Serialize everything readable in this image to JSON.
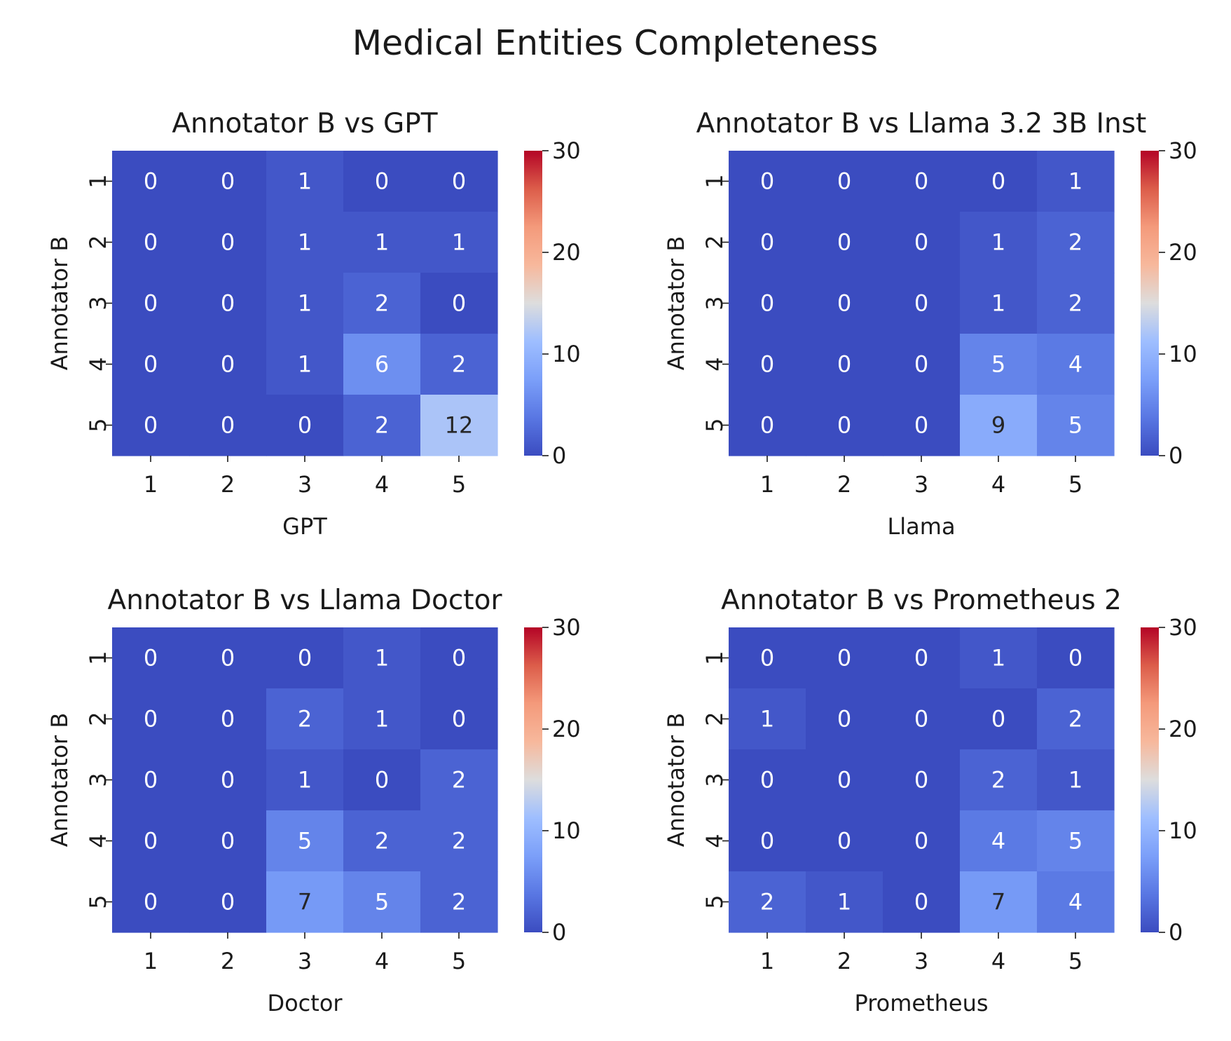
{
  "figure_title": "Medical Entities Completeness",
  "chart_data": [
    {
      "type": "heatmap",
      "title": "Annotator B vs GPT",
      "xlabel": "GPT",
      "ylabel": "Annotator B",
      "x_categories": [
        "1",
        "2",
        "3",
        "4",
        "5"
      ],
      "y_categories": [
        "1",
        "2",
        "3",
        "4",
        "5"
      ],
      "values": [
        [
          0,
          0,
          1,
          0,
          0
        ],
        [
          0,
          0,
          1,
          1,
          1
        ],
        [
          0,
          0,
          1,
          2,
          0
        ],
        [
          0,
          0,
          1,
          6,
          2
        ],
        [
          0,
          0,
          0,
          2,
          12
        ]
      ],
      "colorbar": {
        "colormap": "coolwarm",
        "vmin": 0,
        "vmax": 30,
        "ticks": [
          "0",
          "10",
          "20",
          "30"
        ]
      }
    },
    {
      "type": "heatmap",
      "title": "Annotator B vs Llama 3.2 3B Inst",
      "xlabel": "Llama",
      "ylabel": "Annotator B",
      "x_categories": [
        "1",
        "2",
        "3",
        "4",
        "5"
      ],
      "y_categories": [
        "1",
        "2",
        "3",
        "4",
        "5"
      ],
      "values": [
        [
          0,
          0,
          0,
          0,
          1
        ],
        [
          0,
          0,
          0,
          1,
          2
        ],
        [
          0,
          0,
          0,
          1,
          2
        ],
        [
          0,
          0,
          0,
          5,
          4
        ],
        [
          0,
          0,
          0,
          9,
          5
        ]
      ],
      "colorbar": {
        "colormap": "coolwarm",
        "vmin": 0,
        "vmax": 30,
        "ticks": [
          "0",
          "10",
          "20",
          "30"
        ]
      }
    },
    {
      "type": "heatmap",
      "title": "Annotator B vs Llama Doctor",
      "xlabel": "Doctor",
      "ylabel": "Annotator B",
      "x_categories": [
        "1",
        "2",
        "3",
        "4",
        "5"
      ],
      "y_categories": [
        "1",
        "2",
        "3",
        "4",
        "5"
      ],
      "values": [
        [
          0,
          0,
          0,
          1,
          0
        ],
        [
          0,
          0,
          2,
          1,
          0
        ],
        [
          0,
          0,
          1,
          0,
          2
        ],
        [
          0,
          0,
          5,
          2,
          2
        ],
        [
          0,
          0,
          7,
          5,
          2
        ]
      ],
      "colorbar": {
        "colormap": "coolwarm",
        "vmin": 0,
        "vmax": 30,
        "ticks": [
          "0",
          "10",
          "20",
          "30"
        ]
      }
    },
    {
      "type": "heatmap",
      "title": "Annotator B vs Prometheus 2",
      "xlabel": "Prometheus",
      "ylabel": "Annotator B",
      "x_categories": [
        "1",
        "2",
        "3",
        "4",
        "5"
      ],
      "y_categories": [
        "1",
        "2",
        "3",
        "4",
        "5"
      ],
      "values": [
        [
          0,
          0,
          0,
          1,
          0
        ],
        [
          1,
          0,
          0,
          0,
          2
        ],
        [
          0,
          0,
          0,
          2,
          1
        ],
        [
          0,
          0,
          0,
          4,
          5
        ],
        [
          2,
          1,
          0,
          7,
          4
        ]
      ],
      "colorbar": {
        "colormap": "coolwarm",
        "vmin": 0,
        "vmax": 30,
        "ticks": [
          "0",
          "10",
          "20",
          "30"
        ]
      }
    }
  ]
}
